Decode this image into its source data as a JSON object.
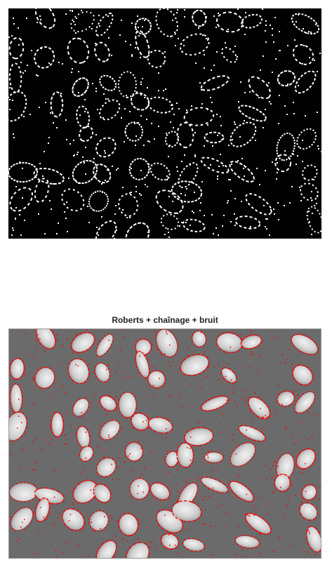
{
  "figure": {
    "panels": [
      {
        "title": "",
        "image": "binary-edge-map",
        "colors": {
          "background": "#000000",
          "edges": "#ffffff"
        }
      },
      {
        "title": "Roberts + chaînage + bruit",
        "image": "grayscale-cells-with-red-contours",
        "colors": {
          "background": "#6b6b6b",
          "cells": "#d9d9d9",
          "contours": "#ff0000"
        }
      }
    ]
  }
}
